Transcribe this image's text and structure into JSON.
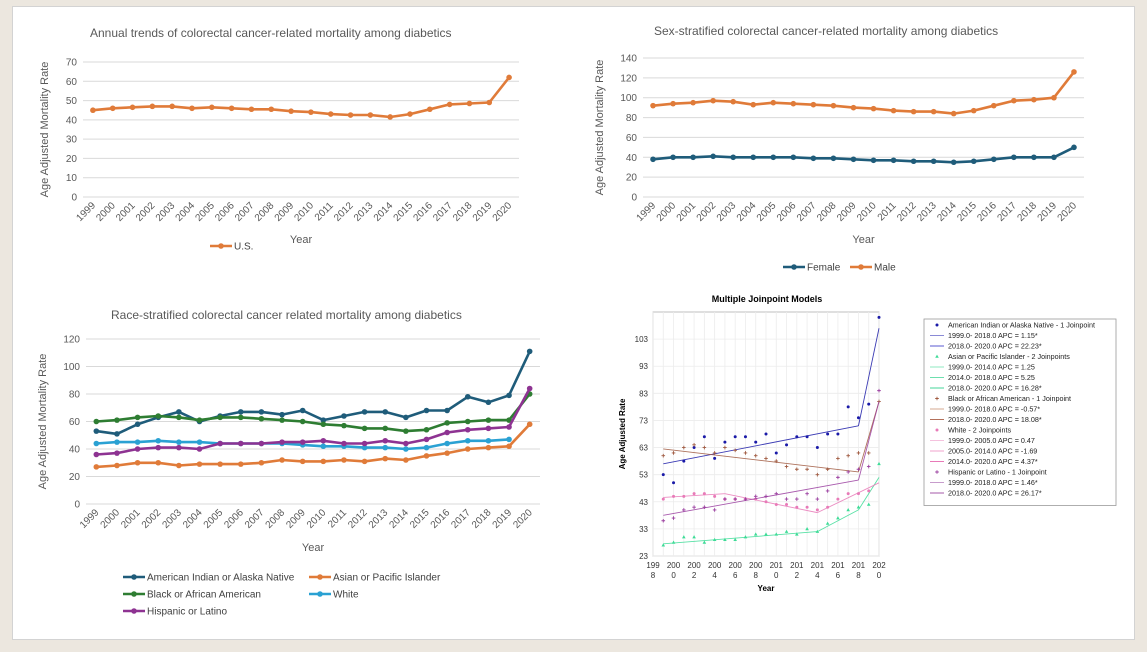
{
  "years": [
    "1999",
    "2000",
    "2001",
    "2002",
    "2003",
    "2004",
    "2005",
    "2006",
    "2007",
    "2008",
    "2009",
    "2010",
    "2011",
    "2012",
    "2013",
    "2014",
    "2015",
    "2016",
    "2017",
    "2018",
    "2019",
    "2020"
  ],
  "chart_data": [
    {
      "id": "us",
      "type": "line",
      "title": "Annual trends of colorectal cancer-related mortality among diabetics",
      "xlabel": "Year",
      "ylabel": "Age Adjusted Mortality Rate",
      "ylim": [
        0,
        70
      ],
      "yticks": [
        0,
        10,
        20,
        30,
        40,
        50,
        60,
        70
      ],
      "grid": true,
      "legend": "bottom",
      "series": [
        {
          "name": "U.S.",
          "color": "#e07b39",
          "values": [
            45,
            46,
            46.5,
            47,
            47,
            46,
            46.5,
            46,
            45.5,
            45.5,
            44.5,
            44,
            43,
            42.5,
            42.5,
            41.5,
            43,
            45.5,
            48,
            48.5,
            49,
            62
          ]
        }
      ]
    },
    {
      "id": "sex",
      "type": "line",
      "title": "Sex-stratified colorectal cancer-related mortality among diabetics",
      "xlabel": "Year",
      "ylabel": "Age Adjusted Mortality Rate",
      "ylim": [
        0,
        140
      ],
      "yticks": [
        0,
        20,
        40,
        60,
        80,
        100,
        120,
        140
      ],
      "grid": true,
      "legend": "bottom",
      "series": [
        {
          "name": "Female",
          "color": "#1f5c7a",
          "values": [
            38,
            40,
            40,
            41,
            40,
            40,
            40,
            40,
            39,
            39,
            38,
            37,
            37,
            36,
            36,
            35,
            36,
            38,
            40,
            40,
            40,
            50
          ]
        },
        {
          "name": "Male",
          "color": "#e07b39",
          "values": [
            92,
            94,
            95,
            97,
            96,
            93,
            95,
            94,
            93,
            92,
            90,
            89,
            87,
            86,
            86,
            84,
            87,
            92,
            97,
            98,
            100,
            126
          ]
        }
      ]
    },
    {
      "id": "race",
      "type": "line",
      "title": "Race-stratified colorectal cancer related mortality among diabetics",
      "xlabel": "Year",
      "ylabel": "Age Adjusted Mortality Rate",
      "ylim": [
        0,
        120
      ],
      "yticks": [
        0,
        20,
        40,
        60,
        80,
        100,
        120
      ],
      "grid": true,
      "legend": "bottom",
      "series": [
        {
          "name": "American Indian or Alaska Native",
          "color": "#1f5c7a",
          "values": [
            53,
            51,
            58,
            63,
            67,
            60,
            64,
            67,
            67,
            65,
            68,
            61,
            64,
            67,
            67,
            63,
            68,
            68,
            78,
            74,
            79,
            111
          ]
        },
        {
          "name": "Asian or Pacific Islander",
          "color": "#e07b39",
          "values": [
            27,
            28,
            30,
            30,
            28,
            29,
            29,
            29,
            30,
            32,
            31,
            31,
            32,
            31,
            33,
            32,
            35,
            37,
            40,
            41,
            42,
            58
          ]
        },
        {
          "name": "Black or African American",
          "color": "#2e7d32",
          "values": [
            60,
            61,
            63,
            64,
            63,
            61,
            63,
            63,
            62,
            61,
            60,
            58,
            57,
            55,
            55,
            53,
            54,
            59,
            60,
            61,
            61,
            80
          ]
        },
        {
          "name": "White",
          "color": "#2aa1d3",
          "values": [
            44,
            45,
            45,
            46,
            45,
            45,
            44,
            44,
            44,
            44,
            43,
            42,
            42,
            41,
            41,
            40,
            41,
            44,
            46,
            46,
            47,
            null
          ]
        },
        {
          "name": "Hispanic or Latino",
          "color": "#8e3392",
          "values": [
            36,
            37,
            40,
            41,
            41,
            40,
            44,
            44,
            44,
            45,
            45,
            46,
            44,
            44,
            46,
            44,
            47,
            52,
            54,
            55,
            56,
            84
          ]
        }
      ]
    },
    {
      "id": "joinpoint",
      "type": "scatter",
      "title": "Multiple Joinpoint Models",
      "xlabel": "Year",
      "ylabel": "Age Adjusted Rate",
      "ylim": [
        23,
        113
      ],
      "yticks": [
        23,
        33,
        43,
        53,
        63,
        73,
        83,
        93,
        103
      ],
      "xlim": [
        1998,
        2020
      ],
      "xtick_lines": [
        [
          "199",
          "8"
        ],
        [
          "200",
          "0"
        ],
        [
          "200",
          "2"
        ],
        [
          "200",
          "4"
        ],
        [
          "200",
          "6"
        ],
        [
          "200",
          "8"
        ],
        [
          "201",
          "0"
        ],
        [
          "201",
          "2"
        ],
        [
          "201",
          "4"
        ],
        [
          "201",
          "6"
        ],
        [
          "201",
          "8"
        ],
        [
          "202",
          "0"
        ]
      ],
      "grid": true,
      "legend": "right",
      "series": [
        {
          "color": "#1a1aa8",
          "marker": "circle",
          "x": [
            1999,
            2020
          ],
          "points": [
            53,
            50,
            58,
            63,
            67,
            59,
            65,
            67,
            67,
            65,
            68,
            61,
            64,
            67,
            67,
            63,
            68,
            68,
            78,
            74,
            79,
            111
          ],
          "segments": [
            [
              1999,
              57,
              2018,
              71
            ],
            [
              2018,
              71,
              2020,
              107
            ]
          ]
        },
        {
          "color": "#3ddc97",
          "marker": "triangle",
          "points": [
            27,
            28,
            30,
            30,
            28,
            29,
            29,
            29,
            30,
            31,
            31,
            31,
            32,
            31,
            33,
            32,
            35,
            37,
            40,
            41,
            42,
            57
          ],
          "segments": [
            [
              1999,
              27.5,
              2014,
              32
            ],
            [
              2014,
              32,
              2018,
              40
            ],
            [
              2018,
              40,
              2020,
              52
            ]
          ]
        },
        {
          "color": "#a05a40",
          "marker": "plus",
          "points": [
            60,
            61,
            63,
            64,
            63,
            61,
            63,
            62,
            61,
            60,
            59,
            58,
            56,
            55,
            55,
            53,
            55,
            59,
            60,
            61,
            61,
            80
          ],
          "segments": [
            [
              1999,
              62.5,
              2018,
              54
            ],
            [
              2018,
              54,
              2020,
              80
            ]
          ]
        },
        {
          "color": "#e87ab8",
          "marker": "circle",
          "points": [
            44,
            45,
            45,
            46,
            46,
            45,
            44,
            44,
            44,
            44,
            43,
            42,
            42,
            41,
            41,
            40,
            41,
            44,
            46,
            46,
            47,
            null
          ],
          "segments": [
            [
              1999,
              44.6,
              2005,
              46
            ],
            [
              2005,
              46,
              2014,
              39
            ],
            [
              2014,
              39,
              2020,
              50
            ]
          ]
        },
        {
          "color": "#9b3fa0",
          "marker": "plus",
          "points": [
            36,
            37,
            40,
            41,
            41,
            40,
            44,
            44,
            44,
            45,
            45,
            46,
            44,
            44,
            46,
            44,
            47,
            52,
            54,
            55,
            56,
            84
          ],
          "segments": [
            [
              1999,
              38,
              2018,
              51
            ],
            [
              2018,
              51,
              2020,
              80
            ]
          ]
        }
      ],
      "legend_entries": [
        {
          "text": "American Indian or Alaska Native - 1 Joinpoint",
          "marker": "circle",
          "color": "#1a1aa8"
        },
        {
          "text": "1999.0- 2018.0 APC  =  1.15*",
          "marker": "line",
          "color": "#8a8ad6"
        },
        {
          "text": "2018.0- 2020.0 APC  =  22.23*",
          "marker": "line",
          "color": "#5a5ad0"
        },
        {
          "text": "Asian or Pacific Islander - 2 Joinpoints",
          "marker": "triangle",
          "color": "#3ddc97"
        },
        {
          "text": "1999.0- 2014.0 APC  =  1.25",
          "marker": "line",
          "color": "#8fe8c0"
        },
        {
          "text": "2014.0- 2018.0 APC  =  5.25",
          "marker": "line",
          "color": "#6ddfae"
        },
        {
          "text": "2018.0- 2020.0 APC  =  16.28*",
          "marker": "line",
          "color": "#45d69a"
        },
        {
          "text": "Black or African American - 1 Joinpoint",
          "marker": "plus",
          "color": "#a05a40"
        },
        {
          "text": "1999.0- 2018.0 APC  =  -0.57*",
          "marker": "line",
          "color": "#d6a890"
        },
        {
          "text": "2018.0- 2020.0 APC  =  18.08*",
          "marker": "line",
          "color": "#b3705a"
        },
        {
          "text": "White - 2 Joinpoints",
          "marker": "circle",
          "color": "#e87ab8"
        },
        {
          "text": "1999.0- 2005.0 APC  =  0.47",
          "marker": "line",
          "color": "#f5c2de"
        },
        {
          "text": "2005.0- 2014.0 APC  =  -1.69",
          "marker": "line",
          "color": "#f0a3cc"
        },
        {
          "text": "2014.0- 2020.0 APC  =  4.37*",
          "marker": "line",
          "color": "#e87ab8"
        },
        {
          "text": "Hispanic or Latino - 1 Joinpoint",
          "marker": "plus",
          "color": "#9b3fa0"
        },
        {
          "text": "1999.0- 2018.0 APC  =  1.46*",
          "marker": "line",
          "color": "#c79ccc"
        },
        {
          "text": "2018.0- 2020.0 APC  =  26.17*",
          "marker": "line",
          "color": "#a458aa"
        }
      ]
    }
  ]
}
